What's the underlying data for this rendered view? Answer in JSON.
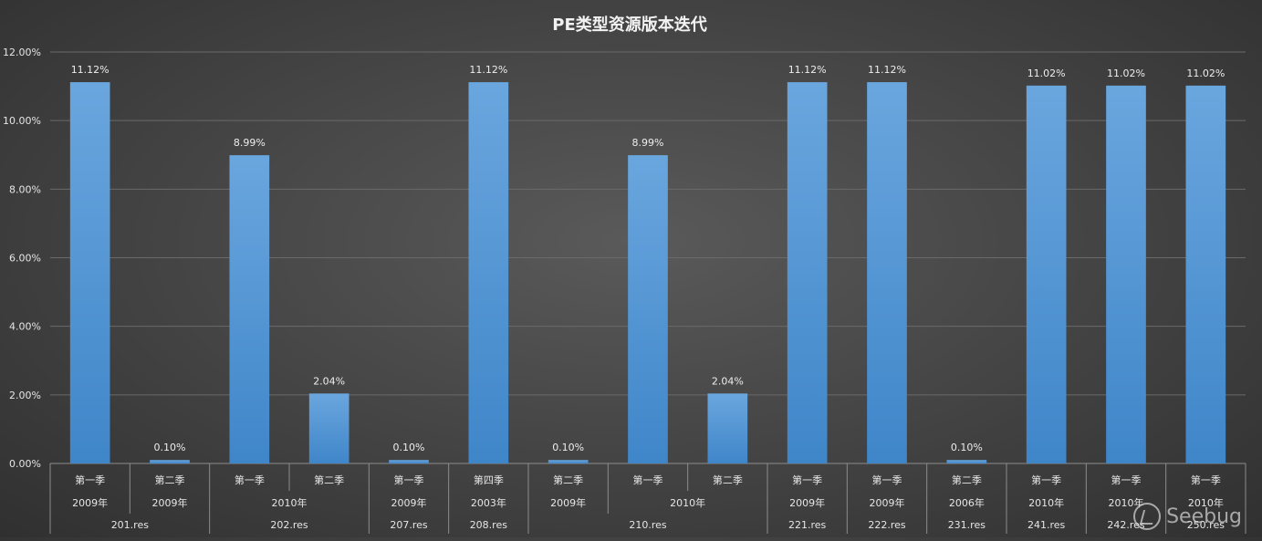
{
  "chart_data": {
    "type": "bar",
    "title": "PE类型资源版本迭代",
    "ylim": [
      0,
      12
    ],
    "yticks": [
      "0.00%",
      "2.00%",
      "4.00%",
      "6.00%",
      "8.00%",
      "10.00%",
      "12.00%"
    ],
    "grid": true,
    "legend": "none",
    "bar_color": "#5b9bd5",
    "values": [
      11.12,
      0.1,
      8.99,
      2.04,
      0.1,
      11.12,
      0.1,
      8.99,
      2.04,
      11.12,
      11.12,
      0.1,
      11.02,
      11.02,
      11.02
    ],
    "labels": [
      "11.12%",
      "0.10%",
      "8.99%",
      "2.04%",
      "0.10%",
      "11.12%",
      "0.10%",
      "8.99%",
      "2.04%",
      "11.12%",
      "11.12%",
      "0.10%",
      "11.02%",
      "11.02%",
      "11.02%"
    ],
    "categories_level1": [
      "第一季",
      "第二季",
      "第一季",
      "第二季",
      "第一季",
      "第四季",
      "第二季",
      "第一季",
      "第二季",
      "第一季",
      "第一季",
      "第二季",
      "第一季",
      "第一季",
      "第一季"
    ],
    "categories_level2": [
      {
        "label": "2009年",
        "span": 1
      },
      {
        "label": "2009年",
        "span": 1
      },
      {
        "label": "2010年",
        "span": 2
      },
      {
        "label": "2009年",
        "span": 1
      },
      {
        "label": "2003年",
        "span": 1
      },
      {
        "label": "2009年",
        "span": 1
      },
      {
        "label": "2010年",
        "span": 2
      },
      {
        "label": "2009年",
        "span": 1
      },
      {
        "label": "2009年",
        "span": 1
      },
      {
        "label": "2006年",
        "span": 1
      },
      {
        "label": "2010年",
        "span": 1
      },
      {
        "label": "2010年",
        "span": 1
      },
      {
        "label": "2010年",
        "span": 1
      }
    ],
    "categories_level3": [
      {
        "label": "201.res",
        "span": 2
      },
      {
        "label": "202.res",
        "span": 2
      },
      {
        "label": "207.res",
        "span": 1
      },
      {
        "label": "208.res",
        "span": 1
      },
      {
        "label": "210.res",
        "span": 3
      },
      {
        "label": "221.res",
        "span": 1
      },
      {
        "label": "222.res",
        "span": 1
      },
      {
        "label": "231.res",
        "span": 1
      },
      {
        "label": "241.res",
        "span": 1
      },
      {
        "label": "242.res",
        "span": 1
      },
      {
        "label": "250.res",
        "span": 1
      }
    ]
  },
  "watermark": {
    "text": "Seebug",
    "icon": "seebug-logo-icon"
  }
}
